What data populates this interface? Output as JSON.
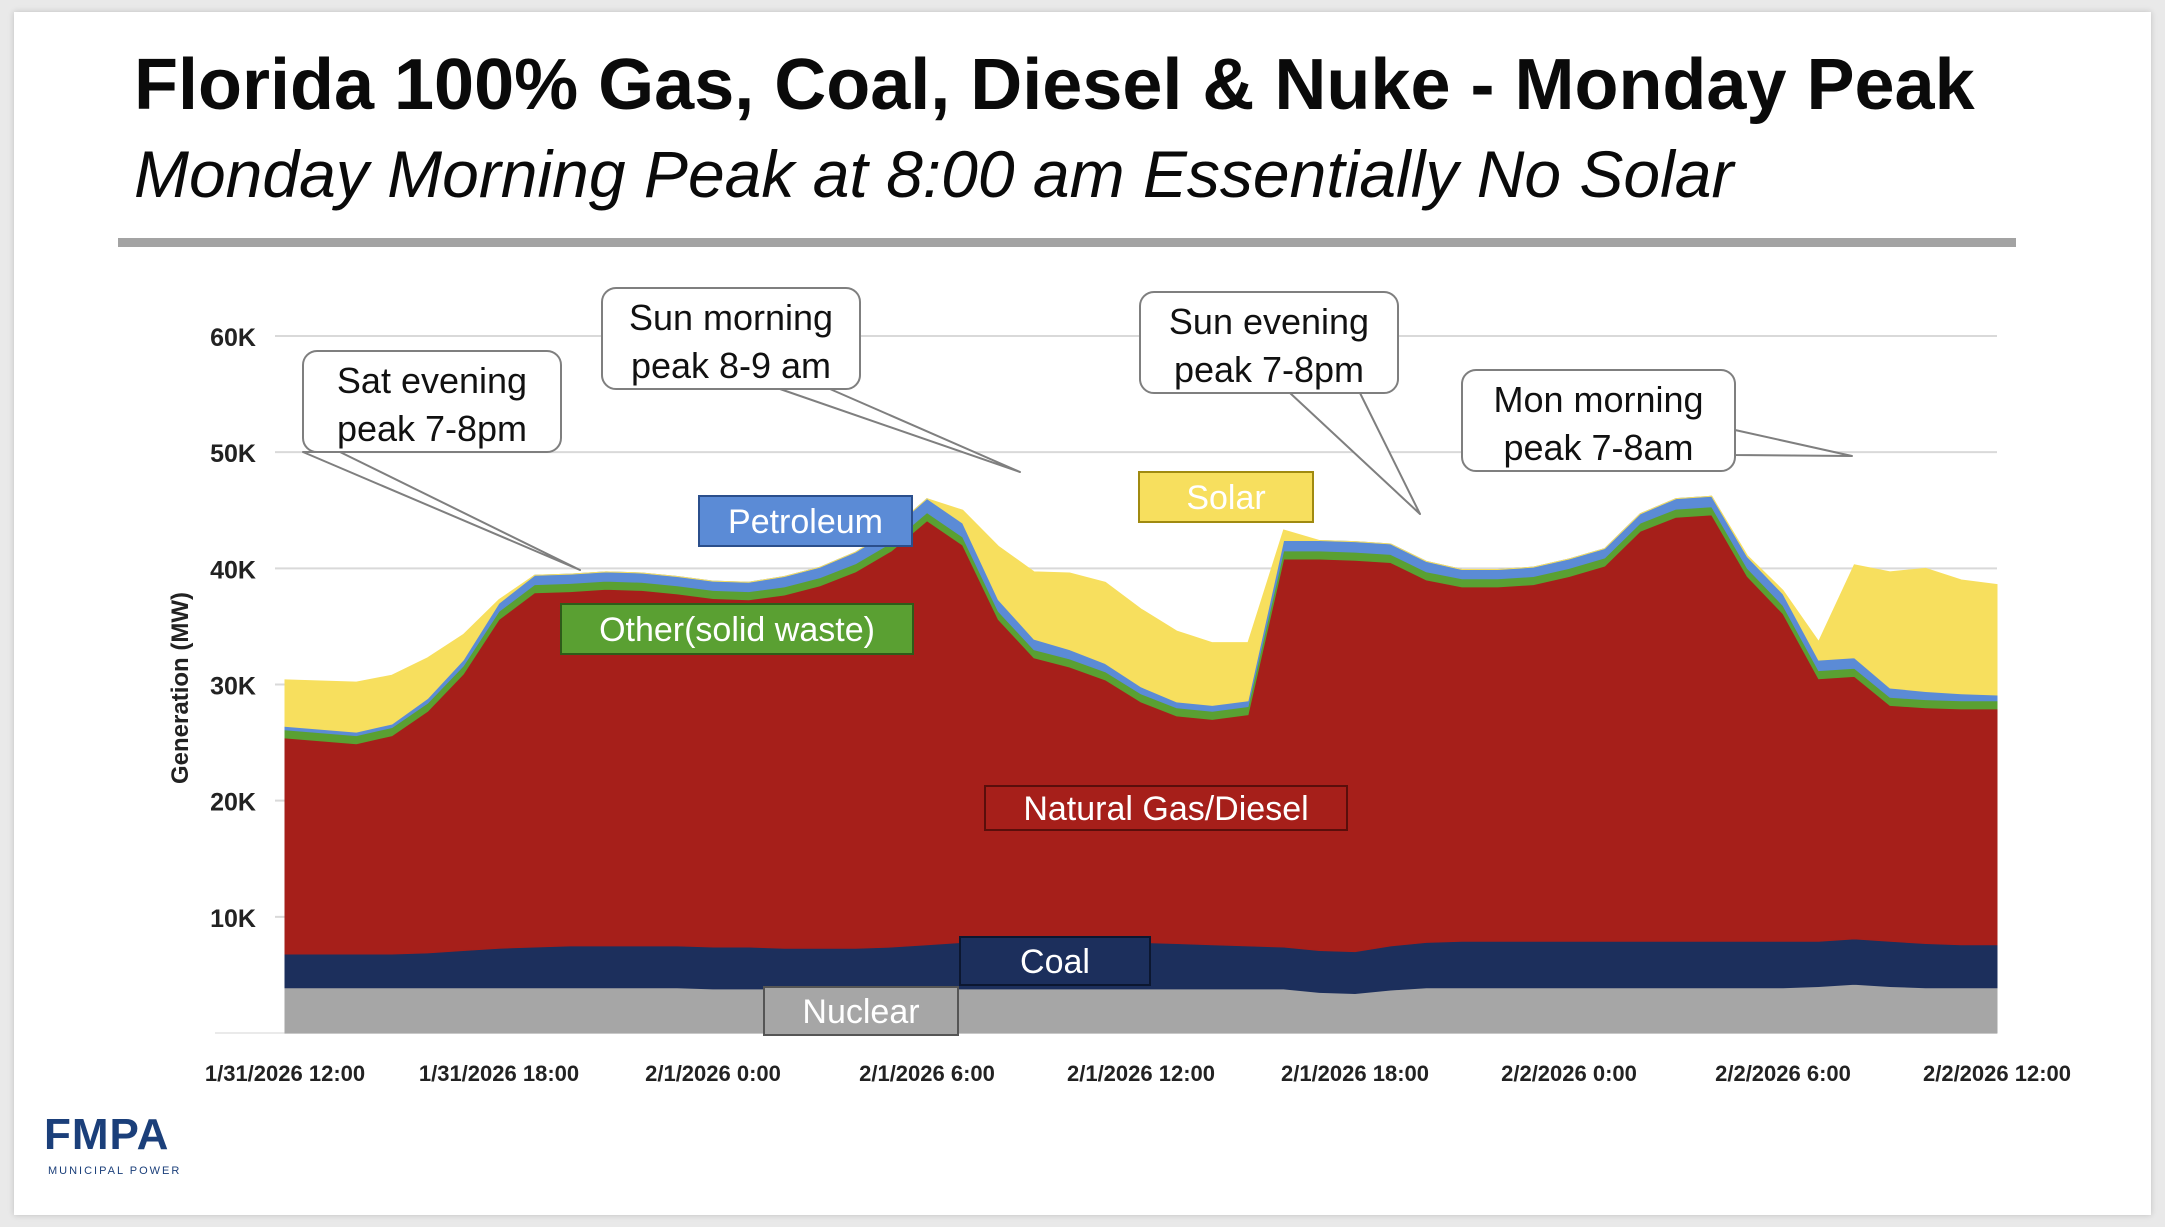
{
  "title": "Florida 100% Gas, Coal, Diesel & Nuke - Monday Peak",
  "subtitle": "Monday Morning Peak at 8:00 am Essentially No Solar",
  "logo": {
    "text": "FMPA",
    "sub": "MUNICIPAL POWER"
  },
  "colors": {
    "nuclear": "#a6a6a6",
    "coal": "#1c2f5c",
    "gas": "#a61f1a",
    "other": "#5aa032",
    "petroleum": "#5b8bd6",
    "solar": "#f7df5e",
    "grid": "#d9d9d9",
    "text": "#222222"
  },
  "chart_data": {
    "type": "area",
    "stacked": true,
    "ylabel": "Generation (MW)",
    "ylim": [
      0,
      60000
    ],
    "yticks": [
      {
        "value": 10000,
        "label": "10K"
      },
      {
        "value": 20000,
        "label": "20K"
      },
      {
        "value": 30000,
        "label": "30K"
      },
      {
        "value": 40000,
        "label": "40K"
      },
      {
        "value": 50000,
        "label": "50K"
      },
      {
        "value": 60000,
        "label": "60K"
      }
    ],
    "xrange": [
      0,
      48
    ],
    "xticks": [
      {
        "hour": 0,
        "label": "1/31/2026 12:00"
      },
      {
        "hour": 6,
        "label": "1/31/2026 18:00"
      },
      {
        "hour": 12,
        "label": "2/1/2026 0:00"
      },
      {
        "hour": 18,
        "label": "2/1/2026 6:00"
      },
      {
        "hour": 24,
        "label": "2/1/2026 12:00"
      },
      {
        "hour": 30,
        "label": "2/1/2026 18:00"
      },
      {
        "hour": 36,
        "label": "2/2/2026 0:00"
      },
      {
        "hour": 42,
        "label": "2/2/2026 6:00"
      },
      {
        "hour": 48,
        "label": "2/2/2026 12:00"
      }
    ],
    "hours": [
      0,
      2,
      3,
      4,
      5,
      6,
      7,
      8,
      9,
      10,
      11,
      12,
      13,
      14,
      15,
      16,
      17,
      18,
      19,
      20,
      21,
      22,
      23,
      24,
      25,
      26,
      27,
      28,
      29,
      30,
      31,
      32,
      33,
      34,
      35,
      36,
      37,
      38,
      39,
      40,
      41,
      42,
      43,
      44,
      45,
      46,
      47,
      48
    ],
    "series": [
      {
        "name": "Nuclear",
        "key": "nuclear",
        "values": [
          3900,
          3900,
          3900,
          3900,
          3900,
          3900,
          3900,
          3900,
          3900,
          3900,
          3900,
          3800,
          3800,
          3800,
          3800,
          3800,
          3800,
          3800,
          3800,
          3800,
          3800,
          3800,
          3800,
          3800,
          3800,
          3800,
          3800,
          3800,
          3500,
          3400,
          3700,
          3900,
          3900,
          3900,
          3900,
          3900,
          3900,
          3900,
          3900,
          3900,
          3900,
          3900,
          4000,
          4200,
          4000,
          3900,
          3900,
          3900
        ]
      },
      {
        "name": "Coal",
        "key": "coal",
        "values": [
          2900,
          2900,
          2900,
          3000,
          3200,
          3400,
          3500,
          3600,
          3600,
          3600,
          3600,
          3600,
          3600,
          3500,
          3500,
          3500,
          3600,
          3800,
          4000,
          4100,
          4000,
          4000,
          4000,
          4000,
          3900,
          3800,
          3700,
          3600,
          3600,
          3600,
          3800,
          3900,
          4000,
          4000,
          4000,
          4000,
          4000,
          4000,
          4000,
          4000,
          4000,
          4000,
          3900,
          3900,
          3900,
          3800,
          3700,
          3700
        ]
      },
      {
        "name": "Natural Gas/Diesel",
        "key": "gas",
        "values": [
          18600,
          18100,
          18800,
          20800,
          23800,
          28300,
          30500,
          30500,
          30700,
          30600,
          30300,
          30000,
          29900,
          30400,
          31200,
          32400,
          34100,
          36500,
          34200,
          27700,
          24500,
          23700,
          22600,
          20700,
          19600,
          19400,
          19900,
          33400,
          33700,
          33700,
          33000,
          31200,
          30500,
          30500,
          30700,
          31400,
          32300,
          35300,
          36500,
          36700,
          31400,
          28200,
          22600,
          22600,
          20300,
          20300,
          20300,
          20300
        ]
      },
      {
        "name": "Other(solid waste)",
        "key": "other",
        "values": [
          700,
          700,
          700,
          700,
          700,
          700,
          700,
          700,
          700,
          700,
          700,
          700,
          700,
          700,
          700,
          700,
          700,
          700,
          700,
          700,
          700,
          700,
          700,
          700,
          700,
          700,
          700,
          700,
          700,
          700,
          700,
          700,
          700,
          700,
          700,
          700,
          700,
          700,
          700,
          700,
          700,
          700,
          700,
          700,
          700,
          700,
          700,
          700
        ]
      },
      {
        "name": "Petroleum",
        "key": "petroleum",
        "values": [
          300,
          300,
          300,
          400,
          500,
          700,
          800,
          800,
          800,
          800,
          800,
          800,
          800,
          900,
          900,
          1000,
          1100,
          1200,
          1200,
          1000,
          900,
          800,
          700,
          600,
          500,
          500,
          500,
          900,
          900,
          900,
          900,
          900,
          800,
          800,
          800,
          800,
          800,
          800,
          900,
          900,
          1000,
          1000,
          900,
          900,
          800,
          700,
          600,
          500
        ]
      },
      {
        "name": "Solar",
        "key": "solar",
        "values": [
          4000,
          4300,
          4200,
          3500,
          2200,
          300,
          0,
          0,
          0,
          0,
          0,
          0,
          0,
          0,
          0,
          0,
          0,
          0,
          1100,
          4600,
          5800,
          6600,
          7000,
          6700,
          6100,
          5400,
          5000,
          900,
          0,
          0,
          0,
          0,
          0,
          0,
          0,
          0,
          0,
          0,
          0,
          0,
          100,
          300,
          1600,
          8000,
          10000,
          10600,
          9800,
          9500
        ]
      }
    ],
    "annotations": [
      {
        "line1": "Sat evening",
        "line2": "peak 7-8pm"
      },
      {
        "line1": "Sun morning",
        "line2": "peak 8-9 am"
      },
      {
        "line1": "Sun evening",
        "line2": "peak 7-8pm"
      },
      {
        "line1": "Mon morning",
        "line2": "peak 7-8am"
      }
    ],
    "series_labels": [
      {
        "key": "petroleum",
        "text": "Petroleum"
      },
      {
        "key": "solar",
        "text": "Solar"
      },
      {
        "key": "other",
        "text": "Other(solid waste)"
      },
      {
        "key": "gas",
        "text": "Natural Gas/Diesel"
      },
      {
        "key": "coal",
        "text": "Coal"
      },
      {
        "key": "nuclear",
        "text": "Nuclear"
      }
    ]
  }
}
